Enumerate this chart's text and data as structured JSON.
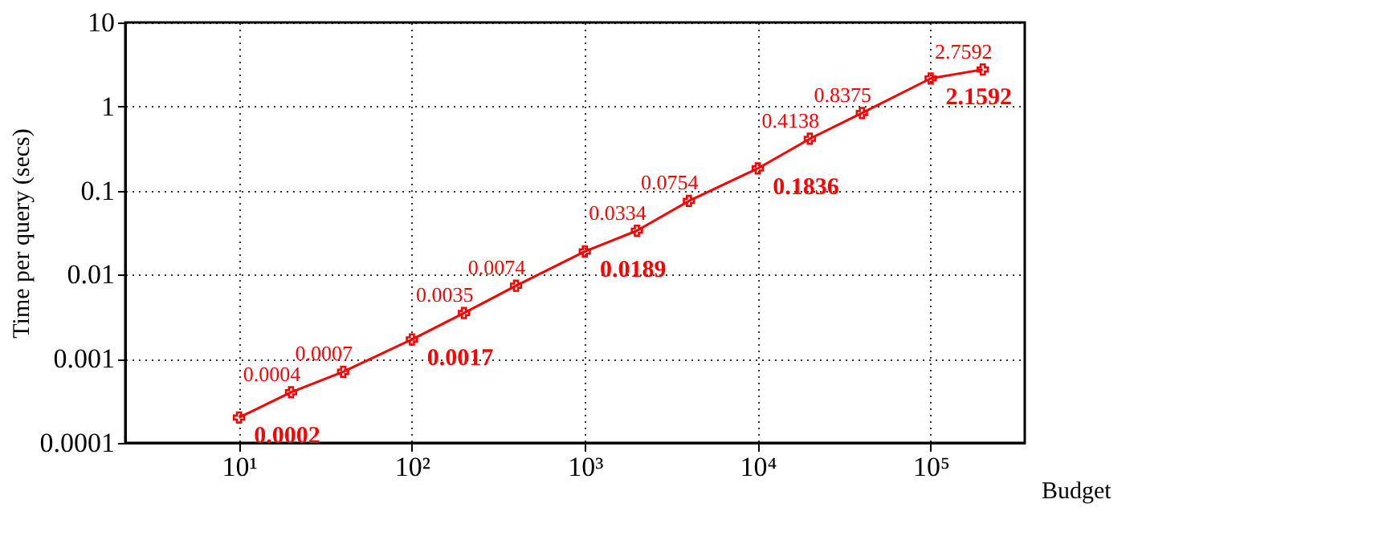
{
  "chart_data": {
    "type": "line",
    "xlabel": "Budget",
    "ylabel": "Time per query (secs)",
    "x": [
      10,
      20,
      40,
      100,
      200,
      400,
      1000,
      2000,
      4000,
      10000,
      20000,
      40000,
      100000,
      200000
    ],
    "series": [
      {
        "color": "#ff0000",
        "values": [
          0.0002,
          0.0004,
          0.0007,
          0.0017,
          0.0035,
          0.0074,
          0.0189,
          0.0334,
          0.0754,
          0.1836,
          0.4138,
          0.8375,
          2.1592,
          2.7592
        ]
      }
    ],
    "log": "xy",
    "xlim": [
      2.2,
      350000
    ],
    "xticks": [
      {
        "value": 10,
        "label": "10¹"
      },
      {
        "value": 100,
        "label": "10²"
      },
      {
        "value": 1000,
        "label": "10³"
      },
      {
        "value": 10000,
        "label": "10⁴"
      },
      {
        "value": 100000,
        "label": "10⁵"
      }
    ],
    "ylim": [
      0.0001,
      10
    ],
    "yticks": [
      0.0001,
      0.001,
      0.01,
      0.1,
      1,
      10
    ],
    "grid": true,
    "marker": "cross",
    "line_style": "solid",
    "data_labels": true
  }
}
